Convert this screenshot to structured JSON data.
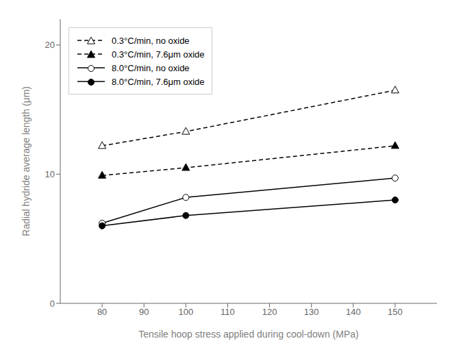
{
  "chart_data": {
    "type": "line",
    "x": [
      80,
      100,
      150
    ],
    "series": [
      {
        "name": "0.3°C/min, no oxide",
        "color": "black",
        "values": [
          12.2,
          13.3,
          16.5
        ],
        "marker": "triangle_open",
        "line_style": "dashed"
      },
      {
        "name": "0.3°C/min, 7.6μm oxide",
        "color": "black",
        "values": [
          9.9,
          10.5,
          12.2
        ],
        "marker": "triangle_filled",
        "line_style": "dashed"
      },
      {
        "name": "8.0°C/min, no oxide",
        "color": "black",
        "values": [
          6.2,
          8.2,
          9.7
        ],
        "marker": "circle_open",
        "line_style": "solid"
      },
      {
        "name": "8.0°C/min, 7.6μm oxide",
        "color": "black",
        "values": [
          6.0,
          6.8,
          8.0
        ],
        "marker": "circle_filled",
        "line_style": "solid"
      }
    ],
    "xlabel": "Tensile hoop stress  applied during cool-down (MPa)",
    "ylabel": "Radial hydride average length (μm)",
    "xlim": [
      70,
      160
    ],
    "ylim": [
      0,
      22
    ],
    "xticks": [
      80,
      90,
      100,
      110,
      120,
      130,
      140,
      150
    ],
    "yticks": [
      0,
      10,
      20
    ],
    "legend": "upper left",
    "grid": false
  }
}
